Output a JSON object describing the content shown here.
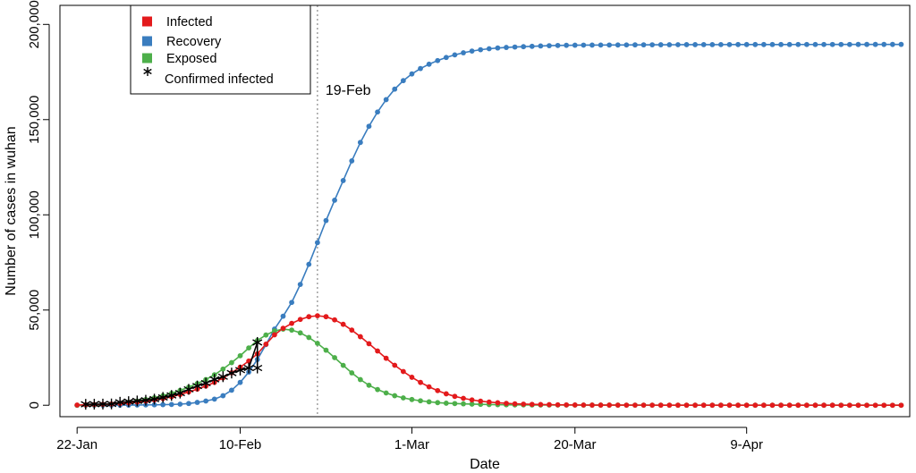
{
  "chart_data": {
    "type": "line",
    "xlabel": "Date",
    "ylabel": "Number of cases in wuhan",
    "x_start": "2020-01-22",
    "x_end": "2020-04-27",
    "xlim": [
      "2020-01-20",
      "2020-04-28"
    ],
    "ylim": [
      -6000,
      210000
    ],
    "x_ticks": [
      {
        "date": "2020-01-22",
        "label": "22-Jan"
      },
      {
        "date": "2020-02-10",
        "label": "10-Feb"
      },
      {
        "date": "2020-03-01",
        "label": "1-Mar"
      },
      {
        "date": "2020-03-20",
        "label": "20-Mar"
      },
      {
        "date": "2020-04-09",
        "label": "9-Apr"
      }
    ],
    "y_ticks": [
      {
        "value": 0,
        "label": "0"
      },
      {
        "value": 50000,
        "label": "50,000"
      },
      {
        "value": 100000,
        "label": "100,000"
      },
      {
        "value": 150000,
        "label": "150,000"
      },
      {
        "value": 200000,
        "label": "200,000"
      }
    ],
    "grid": false,
    "legend_position": "top-left",
    "series": [
      {
        "name": "Infected",
        "color": "#e31a1c",
        "marker": "dot",
        "points": [
          [
            "2020-01-22",
            100
          ],
          [
            "2020-01-27",
            900
          ],
          [
            "2020-02-01",
            3500
          ],
          [
            "2020-02-04",
            7000
          ],
          [
            "2020-02-07",
            12000
          ],
          [
            "2020-02-10",
            20000
          ],
          [
            "2020-02-12",
            27000
          ],
          [
            "2020-02-14",
            37000
          ],
          [
            "2020-02-16",
            43000
          ],
          [
            "2020-02-18",
            46500
          ],
          [
            "2020-02-19",
            47000
          ],
          [
            "2020-02-20",
            46500
          ],
          [
            "2020-02-22",
            42500
          ],
          [
            "2020-02-24",
            36000
          ],
          [
            "2020-02-26",
            28500
          ],
          [
            "2020-02-28",
            21000
          ],
          [
            "2020-03-02",
            12000
          ],
          [
            "2020-03-05",
            6000
          ],
          [
            "2020-03-08",
            2800
          ],
          [
            "2020-03-12",
            1000
          ],
          [
            "2020-03-17",
            300
          ],
          [
            "2020-03-25",
            60
          ],
          [
            "2020-04-27",
            0
          ]
        ]
      },
      {
        "name": "Recovery",
        "color": "#3a7dbf",
        "marker": "dot",
        "points": [
          [
            "2020-01-22",
            0
          ],
          [
            "2020-02-01",
            300
          ],
          [
            "2020-02-05",
            1500
          ],
          [
            "2020-02-08",
            5000
          ],
          [
            "2020-02-10",
            12000
          ],
          [
            "2020-02-12",
            24000
          ],
          [
            "2020-02-14",
            40000
          ],
          [
            "2020-02-16",
            54000
          ],
          [
            "2020-02-18",
            74000
          ],
          [
            "2020-02-20",
            97000
          ],
          [
            "2020-02-22",
            118000
          ],
          [
            "2020-02-24",
            138000
          ],
          [
            "2020-02-26",
            154000
          ],
          [
            "2020-02-28",
            166000
          ],
          [
            "2020-03-01",
            174000
          ],
          [
            "2020-03-04",
            181000
          ],
          [
            "2020-03-08",
            186000
          ],
          [
            "2020-03-15",
            188500
          ],
          [
            "2020-03-25",
            189200
          ],
          [
            "2020-04-27",
            189500
          ]
        ]
      },
      {
        "name": "Exposed",
        "color": "#4daf4a",
        "marker": "dot",
        "points": [
          [
            "2020-01-22",
            0
          ],
          [
            "2020-01-27",
            1000
          ],
          [
            "2020-02-01",
            5000
          ],
          [
            "2020-02-04",
            9500
          ],
          [
            "2020-02-07",
            16000
          ],
          [
            "2020-02-10",
            26000
          ],
          [
            "2020-02-12",
            34000
          ],
          [
            "2020-02-14",
            39000
          ],
          [
            "2020-02-15",
            40000
          ],
          [
            "2020-02-17",
            38000
          ],
          [
            "2020-02-19",
            32500
          ],
          [
            "2020-02-21",
            25000
          ],
          [
            "2020-02-23",
            17000
          ],
          [
            "2020-02-25",
            10500
          ],
          [
            "2020-02-28",
            5000
          ],
          [
            "2020-03-03",
            1800
          ],
          [
            "2020-03-08",
            600
          ],
          [
            "2020-03-15",
            150
          ],
          [
            "2020-04-27",
            0
          ]
        ]
      },
      {
        "name": "Confirmed infected",
        "color": "#000000",
        "marker": "asterisk",
        "points": [
          [
            "2020-01-23",
            495
          ],
          [
            "2020-01-24",
            572
          ],
          [
            "2020-01-25",
            618
          ],
          [
            "2020-01-26",
            698
          ],
          [
            "2020-01-27",
            1590
          ],
          [
            "2020-01-28",
            1905
          ],
          [
            "2020-01-29",
            2261
          ],
          [
            "2020-01-30",
            2639
          ],
          [
            "2020-01-31",
            3215
          ],
          [
            "2020-02-01",
            4109
          ],
          [
            "2020-02-02",
            5142
          ],
          [
            "2020-02-03",
            6384
          ],
          [
            "2020-02-04",
            8351
          ],
          [
            "2020-02-05",
            10117
          ],
          [
            "2020-02-06",
            11618
          ],
          [
            "2020-02-07",
            13603
          ],
          [
            "2020-02-08",
            14982
          ],
          [
            "2020-02-09",
            16902
          ],
          [
            "2020-02-10",
            18454
          ],
          [
            "2020-02-11",
            19558
          ],
          [
            "2020-02-12",
            32994
          ],
          [
            "2020-02-12",
            19558
          ]
        ]
      }
    ],
    "annotations": [
      {
        "type": "vline",
        "date": "2020-02-19",
        "label": "19-Feb"
      }
    ]
  },
  "legend": {
    "items": [
      {
        "label": "Infected",
        "marker": "square",
        "color": "#e31a1c"
      },
      {
        "label": "Recovery",
        "marker": "square",
        "color": "#3a7dbf"
      },
      {
        "label": "Exposed",
        "marker": "square",
        "color": "#4daf4a"
      },
      {
        "label": "Confirmed infected",
        "marker": "asterisk",
        "color": "#000000"
      }
    ]
  }
}
